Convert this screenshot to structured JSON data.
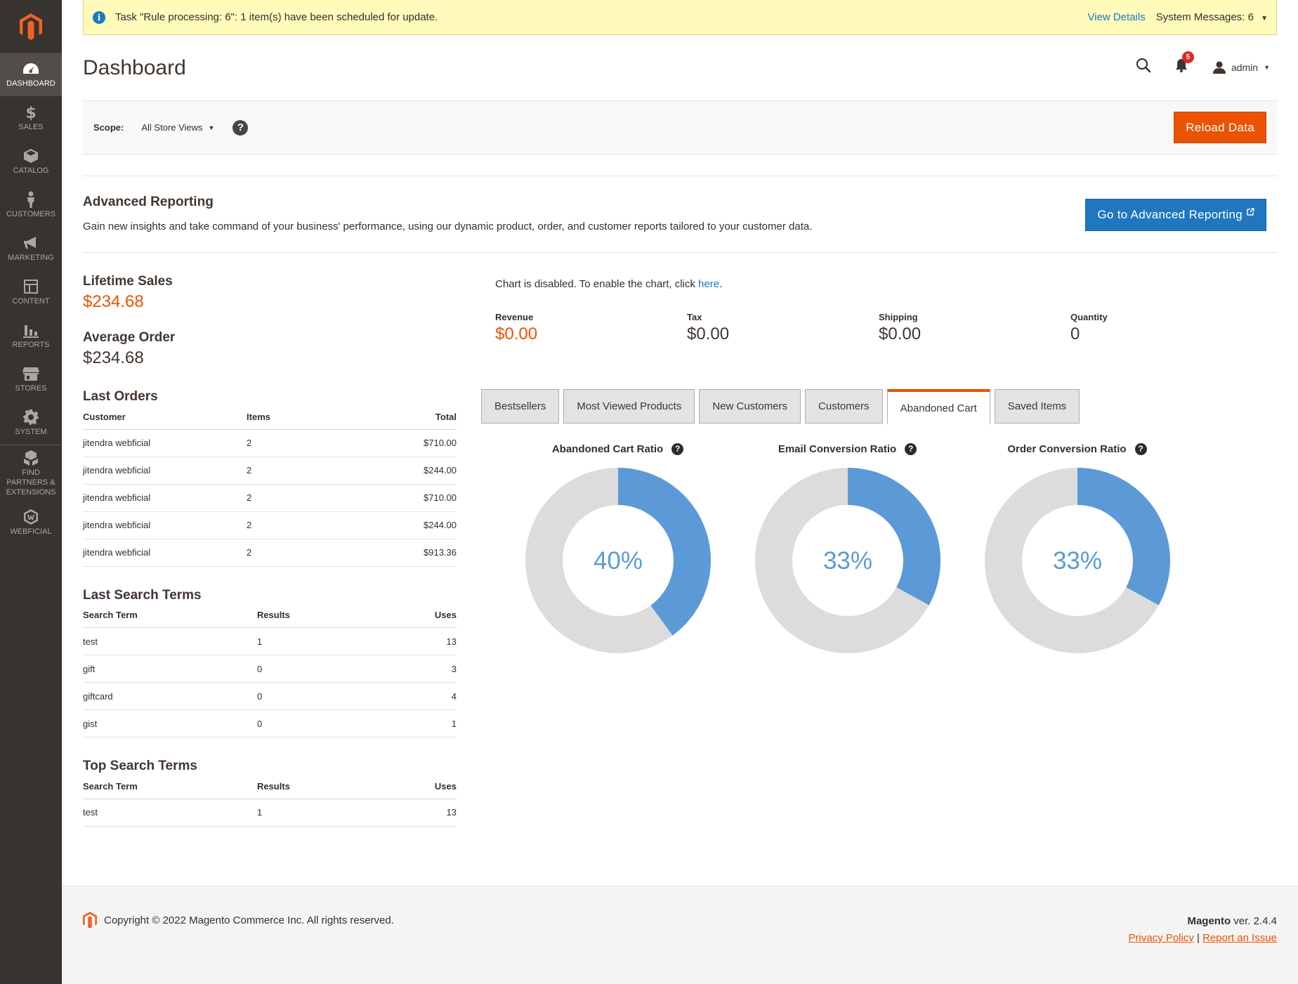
{
  "sidebar": {
    "items": [
      {
        "label": "Dashboard",
        "icon": "dashboard-icon"
      },
      {
        "label": "Sales",
        "icon": "dollar-icon"
      },
      {
        "label": "Catalog",
        "icon": "box-icon"
      },
      {
        "label": "Customers",
        "icon": "person-icon"
      },
      {
        "label": "Marketing",
        "icon": "megaphone-icon"
      },
      {
        "label": "Content",
        "icon": "layout-icon"
      },
      {
        "label": "Reports",
        "icon": "bar-chart-icon"
      },
      {
        "label": "Stores",
        "icon": "storefront-icon"
      },
      {
        "label": "System",
        "icon": "gear-icon"
      },
      {
        "label": "Find Partners & Extensions",
        "icon": "boxes-icon"
      },
      {
        "label": "Webficial",
        "icon": "webficial-icon"
      }
    ]
  },
  "system_message": {
    "text": "Task \"Rule processing: 6\": 1 item(s) have been scheduled for update.",
    "view_details": "View Details",
    "system_messages": "System Messages: 6"
  },
  "header": {
    "title": "Dashboard",
    "notification_count": "5",
    "user": "admin"
  },
  "scope": {
    "label": "Scope:",
    "value": "All Store Views",
    "help": "?",
    "reload": "Reload Data"
  },
  "advanced_reporting": {
    "title": "Advanced Reporting",
    "description": "Gain new insights and take command of your business' performance, using our dynamic product, order, and customer reports tailored to your customer data.",
    "button": "Go to Advanced Reporting"
  },
  "lifetime_sales": {
    "label": "Lifetime Sales",
    "value": "$234.68"
  },
  "average_order": {
    "label": "Average Order",
    "value": "$234.68"
  },
  "last_orders": {
    "title": "Last Orders",
    "columns": [
      "Customer",
      "Items",
      "Total"
    ],
    "rows": [
      [
        "jitendra webficial",
        "2",
        "$710.00"
      ],
      [
        "jitendra webficial",
        "2",
        "$244.00"
      ],
      [
        "jitendra webficial",
        "2",
        "$710.00"
      ],
      [
        "jitendra webficial",
        "2",
        "$244.00"
      ],
      [
        "jitendra webficial",
        "2",
        "$913.36"
      ]
    ]
  },
  "last_search_terms": {
    "title": "Last Search Terms",
    "columns": [
      "Search Term",
      "Results",
      "Uses"
    ],
    "rows": [
      [
        "test",
        "1",
        "13"
      ],
      [
        "gift",
        "0",
        "3"
      ],
      [
        "giftcard",
        "0",
        "4"
      ],
      [
        "gist",
        "0",
        "1"
      ]
    ]
  },
  "top_search_terms": {
    "title": "Top Search Terms",
    "columns": [
      "Search Term",
      "Results",
      "Uses"
    ],
    "rows": [
      [
        "test",
        "1",
        "13"
      ]
    ]
  },
  "chart_notice": {
    "text": "Chart is disabled. To enable the chart, click ",
    "link": "here",
    "end": "."
  },
  "totals": [
    {
      "label": "Revenue",
      "value": "$0.00"
    },
    {
      "label": "Tax",
      "value": "$0.00"
    },
    {
      "label": "Shipping",
      "value": "$0.00"
    },
    {
      "label": "Quantity",
      "value": "0"
    }
  ],
  "tabs": [
    "Bestsellers",
    "Most Viewed Products",
    "New Customers",
    "Customers",
    "Abandoned Cart",
    "Saved Items"
  ],
  "active_tab": "Abandoned Cart",
  "donuts": [
    {
      "title": "Abandoned Cart Ratio",
      "percent": 40,
      "label": "40%"
    },
    {
      "title": "Email Conversion Ratio",
      "percent": 33,
      "label": "33%"
    },
    {
      "title": "Order Conversion Ratio",
      "percent": 33,
      "label": "33%"
    }
  ],
  "colors": {
    "accent": "#eb5202",
    "blue": "#1979c3",
    "donut_fill": "#5b9ad6",
    "donut_track": "#dcdcdc"
  },
  "footer": {
    "copyright": "Copyright © 2022 Magento Commerce Inc. All rights reserved.",
    "brand": "Magento",
    "version": " ver. 2.4.4",
    "privacy": "Privacy Policy",
    "separator": "|",
    "report": "Report an Issue"
  }
}
